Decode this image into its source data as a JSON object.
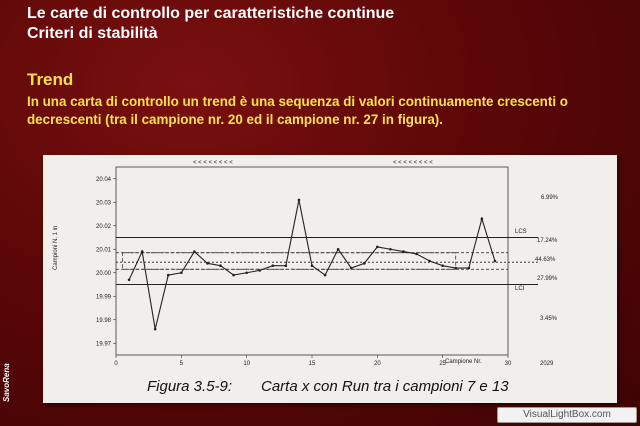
{
  "slide": {
    "title_line1": "Le carte di controllo per caratteristiche continue",
    "title_line2": "Criteri di stabilità",
    "section_heading": "Trend",
    "paragraph": "In una carta di controllo un trend è una sequenza di valori continuamente crescenti o decrescenti (tra il campione nr. 20 ed il campione nr. 27 in figura).",
    "side_label": "SavoRena",
    "watermark": "VisualLightBox.com"
  },
  "figure": {
    "caption_prefix": "Figura 3.5-9:",
    "caption_rest": "Carta x con Run tra i campioni 7 e 13",
    "ylabel": "Campioni N. 1 in",
    "xlabel": "Campione Nr.",
    "lcs_label": "LCS",
    "lci_label": "LCI",
    "right_labels": [
      "6.99%",
      "17.24%",
      "44.63%",
      "27.99%",
      "3.45%"
    ],
    "corner_note": "2029"
  },
  "chart_data": {
    "type": "line",
    "title": "",
    "xlabel": "Campione Nr.",
    "ylabel": "Campioni N. 1 in",
    "x_ticks": [
      "0",
      "5",
      "10",
      "15",
      "20",
      "25",
      "30"
    ],
    "y_ticks": [
      "20.04",
      "20.03",
      "20.02",
      "20.01",
      "20.00",
      "19.99",
      "19.98",
      "19.97"
    ],
    "xlim": [
      0,
      30
    ],
    "ylim": [
      19.965,
      20.045
    ],
    "lcs": 20.015,
    "lci": 19.995,
    "center": 20.0045,
    "zone_upper": 20.0085,
    "zone_lower": 20.0015,
    "x": [
      1,
      2,
      3,
      4,
      5,
      6,
      7,
      8,
      9,
      10,
      11,
      12,
      13,
      14,
      15,
      16,
      17,
      18,
      19,
      20,
      21,
      22,
      23,
      24,
      25,
      26,
      27,
      28,
      29
    ],
    "values": [
      19.997,
      20.009,
      19.976,
      19.999,
      20.0,
      20.009,
      20.004,
      20.003,
      19.999,
      20.0,
      20.001,
      20.003,
      20.003,
      20.031,
      20.003,
      19.999,
      20.01,
      20.002,
      20.004,
      20.011,
      20.01,
      20.009,
      20.008,
      20.005,
      20.003,
      20.002,
      20.002,
      20.023,
      20.005
    ],
    "grid": false
  }
}
